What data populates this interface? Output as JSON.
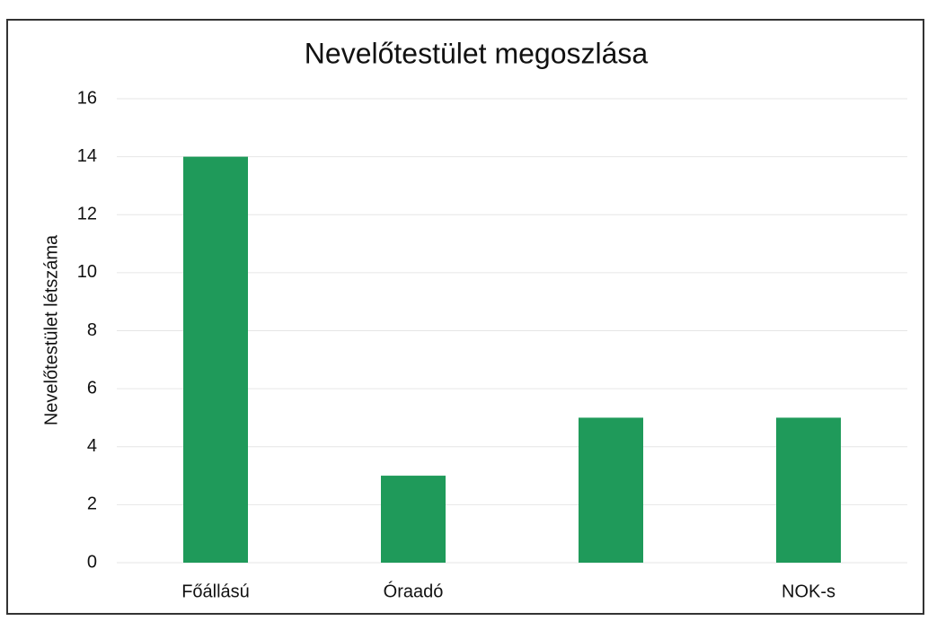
{
  "chart_data": {
    "type": "bar",
    "title": "Nevelőtestület megoszlása",
    "y_label": "Nevelőtestület létszáma",
    "categories": [
      "Főállású",
      "Óraadó",
      null,
      "NOK-s"
    ],
    "values": [
      14,
      3,
      5,
      5
    ],
    "color": "#1f9a5a",
    "ylim": [
      0,
      16
    ],
    "yticks": [
      0,
      2,
      4,
      6,
      8,
      10,
      12,
      14,
      16
    ],
    "grid": true
  }
}
